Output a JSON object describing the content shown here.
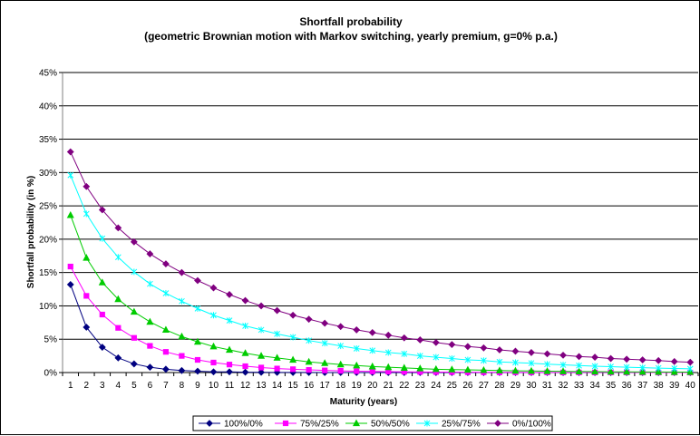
{
  "chart_data": {
    "type": "line",
    "title": "Shortfall probability",
    "subtitle": "(geometric Brownian motion with Markov switching, yearly premium, g=0% p.a.)",
    "xlabel": "Maturity (years)",
    "ylabel": "Shortfall probability (in %)",
    "ylim": [
      0,
      45
    ],
    "y_ticks": [
      "0%",
      "5%",
      "10%",
      "15%",
      "20%",
      "25%",
      "30%",
      "35%",
      "40%",
      "45%"
    ],
    "y_tick_values": [
      0,
      5,
      10,
      15,
      20,
      25,
      30,
      35,
      40,
      45
    ],
    "x": [
      1,
      2,
      3,
      4,
      5,
      6,
      7,
      8,
      9,
      10,
      11,
      12,
      13,
      14,
      15,
      16,
      17,
      18,
      19,
      20,
      21,
      22,
      23,
      24,
      25,
      26,
      27,
      28,
      29,
      30,
      31,
      32,
      33,
      34,
      35,
      36,
      37,
      38,
      39,
      40
    ],
    "x_tick_labels": [
      "1",
      "2",
      "3",
      "4",
      "5",
      "6",
      "7",
      "8",
      "9",
      "10",
      "11",
      "12",
      "13",
      "14",
      "15",
      "16",
      "17",
      "18",
      "19",
      "20",
      "21",
      "22",
      "23",
      "24",
      "25",
      "26",
      "27",
      "28",
      "29",
      "30",
      "31",
      "32",
      "33",
      "34",
      "35",
      "36",
      "37",
      "38",
      "39",
      "40"
    ],
    "grid": "horizontal",
    "legend_position": "bottom",
    "series": [
      {
        "name": "100%/0%",
        "color": "#000080",
        "marker": "diamond",
        "values": [
          13.2,
          6.8,
          3.8,
          2.2,
          1.3,
          0.8,
          0.5,
          0.3,
          0.2,
          0.1,
          0.1,
          0.05,
          0.03,
          0.02,
          0.01,
          0.01,
          0,
          0,
          0,
          0,
          0,
          0,
          0,
          0,
          0,
          0,
          0,
          0,
          0,
          0,
          0,
          0,
          0,
          0,
          0,
          0,
          0,
          0,
          0,
          0
        ]
      },
      {
        "name": "75%/25%",
        "color": "#FF00FF",
        "marker": "square",
        "values": [
          15.9,
          11.5,
          8.7,
          6.7,
          5.2,
          4.0,
          3.1,
          2.5,
          1.9,
          1.5,
          1.2,
          0.95,
          0.75,
          0.6,
          0.5,
          0.4,
          0.32,
          0.26,
          0.21,
          0.17,
          0.14,
          0.11,
          0.09,
          0.07,
          0.06,
          0.05,
          0.04,
          0.03,
          0.03,
          0.02,
          0.02,
          0.01,
          0.01,
          0.01,
          0.01,
          0.01,
          0,
          0,
          0,
          0
        ]
      },
      {
        "name": "50%/50%",
        "color": "#00CC00",
        "marker": "triangle",
        "values": [
          23.6,
          17.2,
          13.5,
          11.0,
          9.1,
          7.6,
          6.4,
          5.4,
          4.6,
          3.9,
          3.4,
          2.9,
          2.5,
          2.2,
          1.9,
          1.6,
          1.4,
          1.2,
          1.05,
          0.9,
          0.8,
          0.7,
          0.6,
          0.5,
          0.45,
          0.4,
          0.35,
          0.3,
          0.26,
          0.23,
          0.2,
          0.17,
          0.15,
          0.13,
          0.11,
          0.1,
          0.09,
          0.08,
          0.07,
          0.06
        ]
      },
      {
        "name": "25%/75%",
        "color": "#00FFFF",
        "marker": "star",
        "values": [
          29.6,
          23.8,
          20.1,
          17.3,
          15.1,
          13.3,
          11.9,
          10.7,
          9.6,
          8.6,
          7.8,
          7.0,
          6.4,
          5.8,
          5.3,
          4.8,
          4.4,
          4.0,
          3.6,
          3.3,
          3.0,
          2.8,
          2.5,
          2.3,
          2.1,
          1.9,
          1.8,
          1.6,
          1.5,
          1.4,
          1.25,
          1.15,
          1.05,
          0.95,
          0.88,
          0.8,
          0.73,
          0.67,
          0.61,
          0.56
        ]
      },
      {
        "name": "0%/100%",
        "color": "#800080",
        "marker": "diamond",
        "values": [
          33.1,
          27.9,
          24.4,
          21.7,
          19.6,
          17.8,
          16.3,
          15.0,
          13.8,
          12.7,
          11.7,
          10.8,
          10.0,
          9.3,
          8.6,
          8.0,
          7.4,
          6.9,
          6.4,
          6.0,
          5.6,
          5.2,
          4.9,
          4.5,
          4.2,
          3.9,
          3.7,
          3.4,
          3.2,
          3.0,
          2.8,
          2.6,
          2.4,
          2.3,
          2.1,
          2.0,
          1.9,
          1.8,
          1.65,
          1.55
        ]
      }
    ]
  }
}
